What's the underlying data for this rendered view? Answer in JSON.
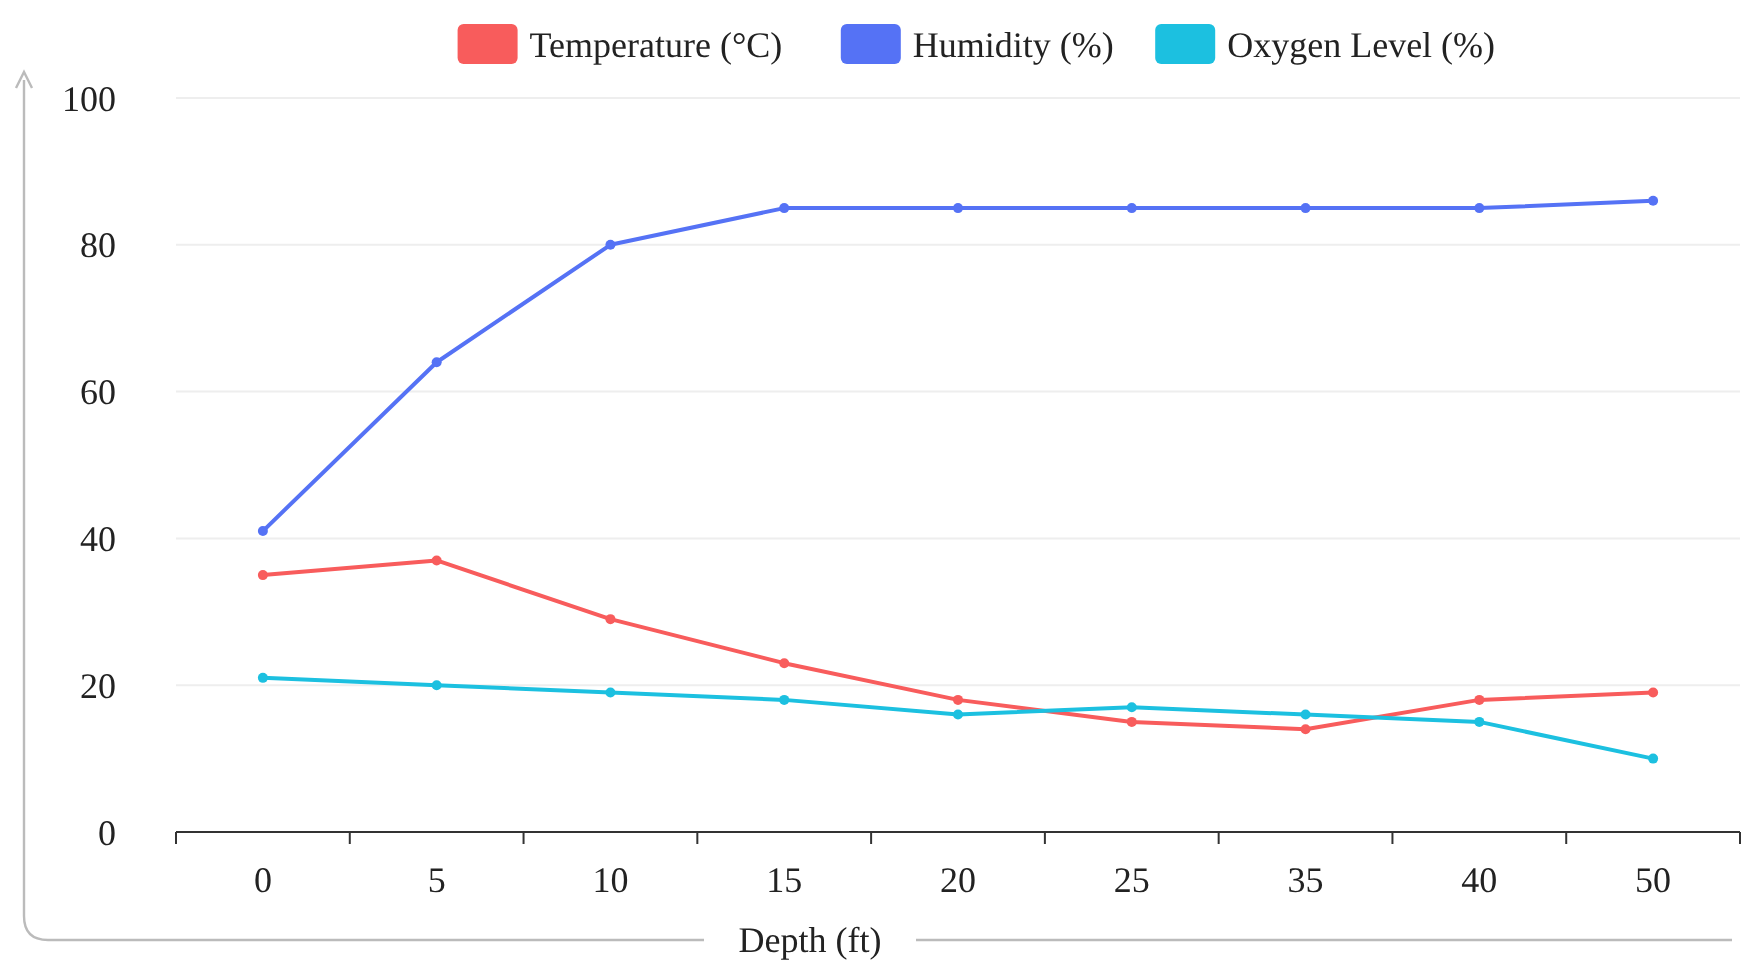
{
  "chart_data": {
    "type": "line",
    "xlabel": "Depth (ft)",
    "categories": [
      "0",
      "5",
      "10",
      "15",
      "20",
      "25",
      "35",
      "40",
      "50"
    ],
    "series": [
      {
        "name": "Temperature (°C)",
        "color": "#f85c5c",
        "values": [
          35,
          37,
          29,
          23,
          18,
          15,
          14,
          18,
          19
        ]
      },
      {
        "name": "Humidity (%)",
        "color": "#5572f5",
        "values": [
          41,
          64,
          80,
          85,
          85,
          85,
          85,
          85,
          86
        ]
      },
      {
        "name": "Oxygen Level (%)",
        "color": "#1cc0e0",
        "values": [
          21,
          20,
          19,
          18,
          16,
          17,
          16,
          15,
          10
        ]
      }
    ],
    "ylim": [
      0,
      100
    ],
    "yticks": [
      0,
      20,
      40,
      60,
      80,
      100
    ],
    "grid": "y",
    "legend": "top",
    "marker": "circle",
    "line_style": "solid"
  }
}
